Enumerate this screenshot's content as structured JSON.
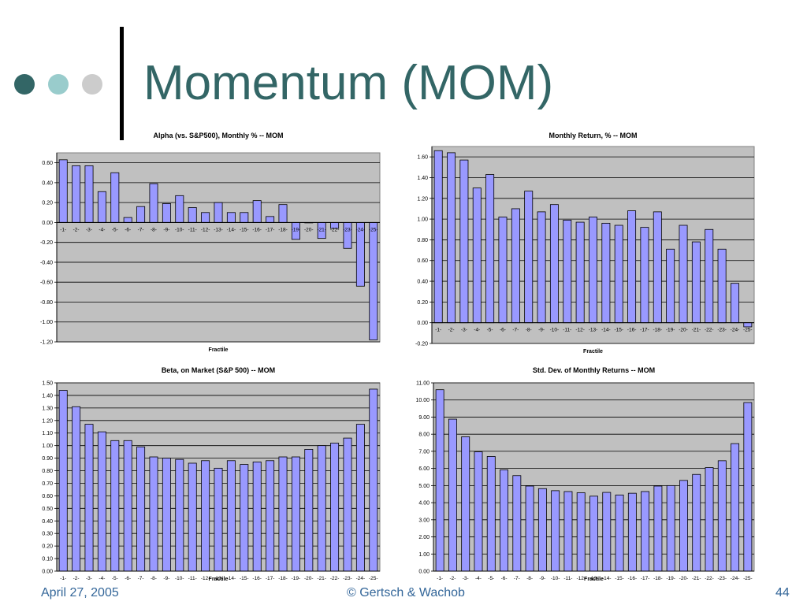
{
  "slide": {
    "title": "Momentum (MOM)",
    "footer_date": "April 27, 2005",
    "footer_center": "© Gertsch & Wachob",
    "page_number": "44",
    "title_color": "#336666",
    "footer_color": "#336699",
    "dot_colors": [
      "#336666",
      "#99CCCC",
      "#CCCCCC"
    ]
  },
  "chart_data": [
    {
      "type": "bar",
      "title": "Alpha (vs. S&P500), Monthly %  -- MOM",
      "xlabel": "Fractile",
      "ylabel": "",
      "ylim": [
        -1.2,
        0.7
      ],
      "yticks": [
        0.6,
        0.4,
        0.2,
        0.0,
        -0.2,
        -0.4,
        -0.6,
        -0.8,
        -1.0,
        -1.2
      ],
      "ytick_labels": [
        "0.60",
        "0.40",
        "0.20",
        "0.00",
        "-0.20",
        "-0.40",
        "-0.60",
        "-0.80",
        "-1.00",
        "-1.20"
      ],
      "categories": [
        "-1-",
        "-2-",
        "-3-",
        "-4-",
        "-5-",
        "-6-",
        "-7-",
        "-8-",
        "-9-",
        "-10-",
        "-11-",
        "-12-",
        "-13-",
        "-14-",
        "-15-",
        "-16-",
        "-17-",
        "-18-",
        "-19-",
        "-20-",
        "-21-",
        "-22-",
        "-23-",
        "-24-",
        "-25-"
      ],
      "values": [
        0.63,
        0.57,
        0.57,
        0.31,
        0.5,
        0.05,
        0.16,
        0.39,
        0.19,
        0.27,
        0.15,
        0.1,
        0.2,
        0.1,
        0.1,
        0.22,
        0.06,
        0.18,
        -0.17,
        0.0,
        -0.16,
        -0.06,
        -0.26,
        -0.64,
        -1.18
      ],
      "grid": true,
      "legend": "none",
      "bar_color": "#9999FF",
      "plot_background": "#C0C0C0"
    },
    {
      "type": "bar",
      "title": "Monthly Return, %  -- MOM",
      "xlabel": "Fractile",
      "ylabel": "",
      "ylim": [
        -0.2,
        1.7
      ],
      "yticks": [
        1.6,
        1.4,
        1.2,
        1.0,
        0.8,
        0.6,
        0.4,
        0.2,
        0.0,
        -0.2
      ],
      "ytick_labels": [
        "1.60",
        "1.40",
        "1.20",
        "1.00",
        "0.80",
        "0.60",
        "0.40",
        "0.20",
        "0.00",
        "-0.20"
      ],
      "categories": [
        "-1-",
        "-2-",
        "-3-",
        "-4-",
        "-5-",
        "-6-",
        "-7-",
        "-8-",
        "-9-",
        "-10-",
        "-11-",
        "-12-",
        "-13-",
        "-14-",
        "-15-",
        "-16-",
        "-17-",
        "-18-",
        "-19-",
        "-20-",
        "-21-",
        "-22-",
        "-23-",
        "-24-",
        "-25-"
      ],
      "values": [
        1.66,
        1.64,
        1.57,
        1.3,
        1.43,
        1.02,
        1.1,
        1.27,
        1.07,
        1.14,
        0.99,
        0.97,
        1.02,
        0.96,
        0.94,
        1.08,
        0.92,
        1.07,
        0.71,
        0.94,
        0.78,
        0.9,
        0.71,
        0.38,
        -0.04
      ],
      "grid": true,
      "legend": "none",
      "bar_color": "#9999FF",
      "plot_background": "#C0C0C0"
    },
    {
      "type": "bar",
      "title": "Beta, on Market (S&P 500)  -- MOM",
      "xlabel": "Fractile",
      "ylabel": "",
      "ylim": [
        0.0,
        1.5
      ],
      "yticks": [
        1.5,
        1.4,
        1.3,
        1.2,
        1.1,
        1.0,
        0.9,
        0.8,
        0.7,
        0.6,
        0.5,
        0.4,
        0.3,
        0.2,
        0.1,
        0.0
      ],
      "ytick_labels": [
        "1.50",
        "1.40",
        "1.30",
        "1.20",
        "1.10",
        "1.00",
        "0.90",
        "0.80",
        "0.70",
        "0.60",
        "0.50",
        "0.40",
        "0.30",
        "0.20",
        "0.10",
        "0.00"
      ],
      "categories": [
        "-1-",
        "-2-",
        "-3-",
        "-4-",
        "-5-",
        "-6-",
        "-7-",
        "-8-",
        "-9-",
        "-10-",
        "-11-",
        "-12-",
        "-13-",
        "-14-",
        "-15-",
        "-16-",
        "-17-",
        "-18-",
        "-19-",
        "-20-",
        "-21-",
        "-22-",
        "-23-",
        "-24-",
        "-25-"
      ],
      "values": [
        1.44,
        1.31,
        1.17,
        1.11,
        1.04,
        1.04,
        0.99,
        0.91,
        0.9,
        0.89,
        0.86,
        0.88,
        0.82,
        0.88,
        0.85,
        0.87,
        0.88,
        0.91,
        0.91,
        0.97,
        1.0,
        1.02,
        1.06,
        1.17,
        1.45
      ],
      "grid": true,
      "legend": "none",
      "bar_color": "#9999FF",
      "plot_background": "#C0C0C0"
    },
    {
      "type": "bar",
      "title": "Std. Dev. of Monthly Returns  -- MOM",
      "xlabel": "Fractile",
      "ylabel": "",
      "ylim": [
        0.0,
        11.0
      ],
      "yticks": [
        11.0,
        10.0,
        9.0,
        8.0,
        7.0,
        6.0,
        5.0,
        4.0,
        3.0,
        2.0,
        1.0,
        0.0
      ],
      "ytick_labels": [
        "11.00",
        "10.00",
        "9.00",
        "8.00",
        "7.00",
        "6.00",
        "5.00",
        "4.00",
        "3.00",
        "2.00",
        "1.00",
        "0.00"
      ],
      "categories": [
        "-1-",
        "-2-",
        "-3-",
        "-4-",
        "-5-",
        "-6-",
        "-7-",
        "-8-",
        "-9-",
        "-10-",
        "-11-",
        "-12-",
        "-13-",
        "-14-",
        "-15-",
        "-16-",
        "-17-",
        "-18-",
        "-19-",
        "-20-",
        "-21-",
        "-22-",
        "-23-",
        "-24-",
        "-25-"
      ],
      "values": [
        10.6,
        8.88,
        7.85,
        6.97,
        6.7,
        5.92,
        5.58,
        4.97,
        4.82,
        4.7,
        4.65,
        4.58,
        4.38,
        4.6,
        4.45,
        4.55,
        4.65,
        4.97,
        5.0,
        5.3,
        5.65,
        6.05,
        6.45,
        7.45,
        9.85
      ],
      "grid": true,
      "legend": "none",
      "bar_color": "#9999FF",
      "plot_background": "#C0C0C0"
    }
  ]
}
